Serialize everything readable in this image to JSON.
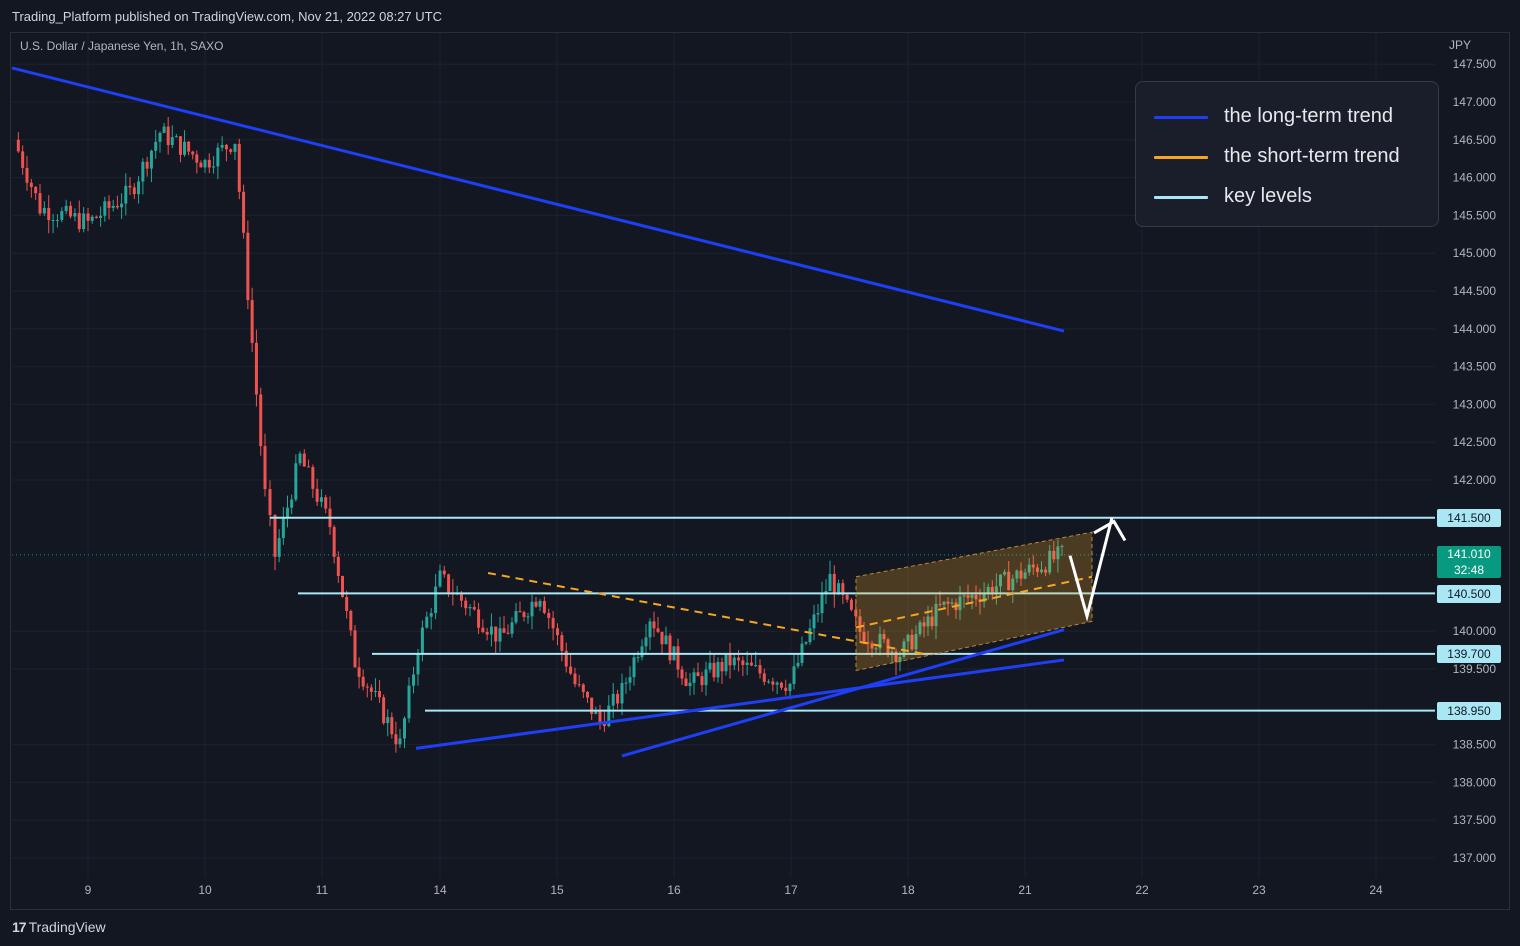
{
  "header": {
    "publish_line": "Trading_Platform published on TradingView.com, Nov 21, 2022 08:27 UTC"
  },
  "chart": {
    "symbol": "U.S. Dollar / Japanese Yen, 1h, SAXO",
    "currency": "JPY",
    "last_price": "141.010",
    "countdown": "32:48"
  },
  "legend": {
    "items": [
      {
        "label": "the long-term trend",
        "color": "#1e3ff5"
      },
      {
        "label": "the short-term trend",
        "color": "#f5a623"
      },
      {
        "label": "key levels",
        "color": "#a9e7f5"
      }
    ]
  },
  "price_tags": {
    "l141500": "141.500",
    "l140500": "140.500",
    "l139700": "139.700",
    "l138950": "138.950"
  },
  "footer": {
    "brand": "TradingView",
    "logo_mark": "17"
  },
  "colors": {
    "background": "#131722",
    "up": "#26a69a",
    "down": "#ef5350",
    "long_trend": "#1e3ff5",
    "short_trend": "#f5a623",
    "key_level": "#a9e7f5",
    "last_price": "#089981"
  },
  "chart_data": {
    "type": "candlestick",
    "instrument": "USD/JPY",
    "timeframe": "1h",
    "x_labels": [
      "9",
      "10",
      "11",
      "14",
      "15",
      "16",
      "17",
      "18",
      "21",
      "22",
      "23",
      "24"
    ],
    "y_ticks": [
      "147.500",
      "147.000",
      "146.500",
      "146.000",
      "145.500",
      "145.000",
      "144.500",
      "144.000",
      "143.500",
      "143.000",
      "142.500",
      "142.000",
      "140.000",
      "139.500",
      "138.500",
      "138.000",
      "137.500",
      "137.000"
    ],
    "ylim": [
      136.8,
      147.6
    ],
    "key_levels": [
      141.5,
      140.5,
      139.7,
      138.95
    ],
    "last_price": 141.01,
    "trend_lines": {
      "long_term_down": [
        [
          "start",
          147.45
        ],
        [
          "21",
          143.97
        ]
      ],
      "support_1": [
        [
          "13",
          138.45
        ],
        [
          "21",
          139.62
        ]
      ],
      "support_2": [
        [
          "15",
          138.35
        ],
        [
          "21",
          140.02
        ]
      ]
    },
    "price_path": [
      [
        "8",
        146.5
      ],
      [
        "8",
        145.6
      ],
      [
        "9",
        145.4
      ],
      [
        "9",
        145.8
      ],
      [
        "10",
        146.6
      ],
      [
        "10",
        146.2
      ],
      [
        "10",
        146.5
      ],
      [
        "11",
        141.8
      ],
      [
        "11",
        141.0
      ],
      [
        "11",
        142.3
      ],
      [
        "11",
        141.4
      ],
      [
        "13",
        139.6
      ],
      [
        "13",
        138.5
      ],
      [
        "14",
        139.8
      ],
      [
        "14",
        140.7
      ],
      [
        "14",
        139.9
      ],
      [
        "15",
        140.5
      ],
      [
        "15",
        139.3
      ],
      [
        "15",
        138.8
      ],
      [
        "16",
        139.2
      ],
      [
        "16",
        140.2
      ],
      [
        "16",
        139.3
      ],
      [
        "17",
        139.6
      ],
      [
        "17",
        139.3
      ],
      [
        "17",
        140.7
      ],
      [
        "18",
        140.0
      ],
      [
        "18",
        139.7
      ],
      [
        "18",
        140.3
      ],
      [
        "21",
        140.5
      ],
      [
        "21",
        141.01
      ]
    ],
    "legend_position": "top-right"
  }
}
